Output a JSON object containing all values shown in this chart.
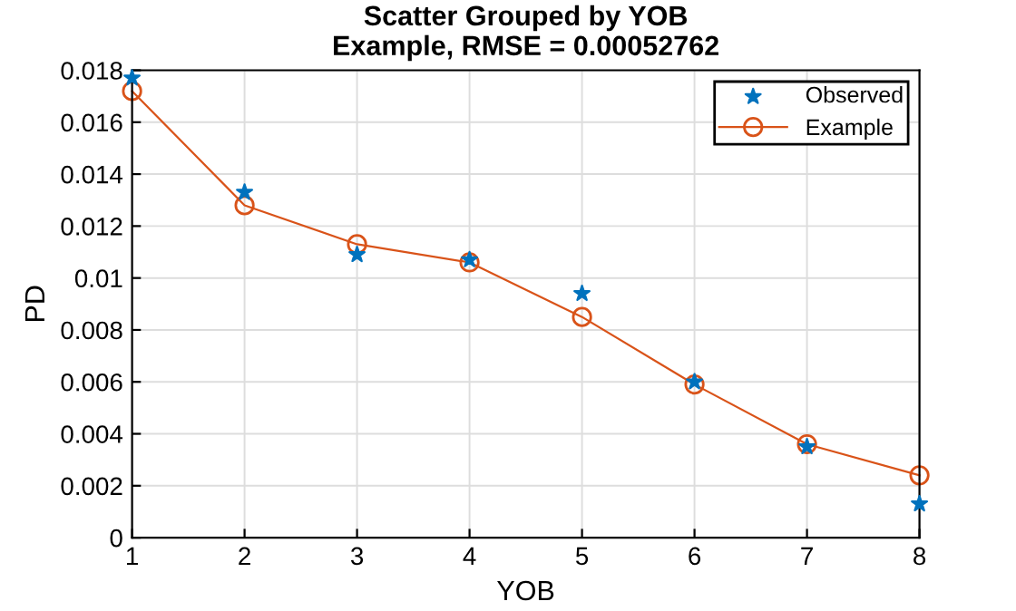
{
  "chart_data": {
    "type": "line",
    "title": "Scatter Grouped by YOB\nExample, RMSE = 0.00052762",
    "xlabel": "YOB",
    "ylabel": "PD",
    "x": [
      1,
      2,
      3,
      4,
      5,
      6,
      7,
      8
    ],
    "series": [
      {
        "name": "Observed",
        "type": "scatter",
        "marker": "star",
        "color": "#0072bd",
        "values": [
          0.0177,
          0.0133,
          0.0109,
          0.0107,
          0.0094,
          0.006,
          0.0035,
          0.0013
        ]
      },
      {
        "name": "Example",
        "marker": "circle",
        "color": "#d95319",
        "values": [
          0.0172,
          0.0128,
          0.0113,
          0.0106,
          0.0085,
          0.0059,
          0.0036,
          0.0024
        ]
      }
    ],
    "xlim": [
      1,
      8
    ],
    "xticks": [
      1,
      2,
      3,
      4,
      5,
      6,
      7,
      8
    ],
    "ylim": [
      0,
      0.018
    ],
    "yticks": [
      0,
      0.002,
      0.004,
      0.006,
      0.008,
      0.01,
      0.012,
      0.014,
      0.016,
      0.018
    ],
    "grid": true,
    "legend": "top right"
  }
}
